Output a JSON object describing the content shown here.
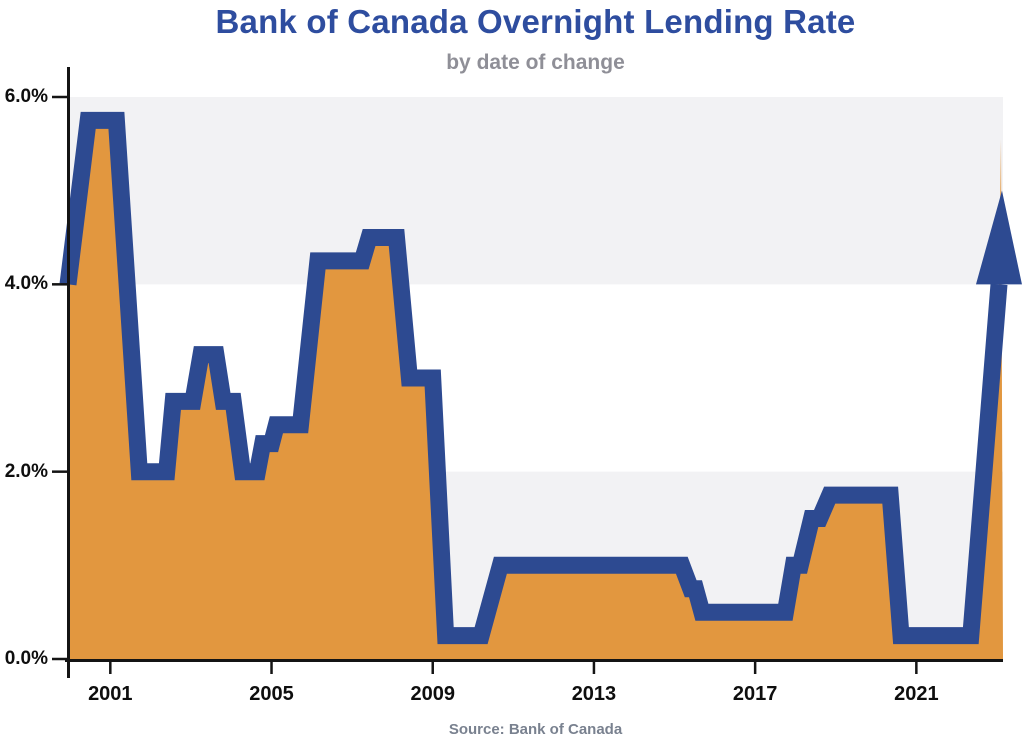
{
  "header": {
    "title": "Bank of Canada Overnight Lending Rate",
    "subtitle": "by date of change"
  },
  "footer": {
    "source": "Source: Bank of Canada"
  },
  "chart_data": {
    "type": "area",
    "title": "Bank of Canada Overnight Lending Rate",
    "subtitle": "by date of change",
    "xlabel": "",
    "ylabel": "",
    "unit": "percent",
    "grid": "off",
    "legend": "none",
    "xlim": [
      1999.95,
      2023.15
    ],
    "ylim": [
      0,
      6
    ],
    "x_ticks": {
      "values": [
        2001,
        2005,
        2009,
        2013,
        2017,
        2021
      ],
      "labels": [
        "2001",
        "2005",
        "2009",
        "2013",
        "2017",
        "2021"
      ]
    },
    "y_ticks": {
      "values": [
        0,
        2,
        4,
        6
      ],
      "labels": [
        "0.0%",
        "2.0%",
        "4.0%",
        "6.0%"
      ]
    },
    "shaded_bands": [
      [
        0,
        2
      ],
      [
        4,
        6
      ]
    ],
    "series": [
      {
        "name": "Overnight lending rate (%) by date of change",
        "points": [
          [
            1999.95,
            4.0
          ],
          [
            2000.45,
            5.75
          ],
          [
            2001.15,
            5.75
          ],
          [
            2001.72,
            2.0
          ],
          [
            2002.4,
            2.0
          ],
          [
            2002.56,
            2.75
          ],
          [
            2003.05,
            2.75
          ],
          [
            2003.25,
            3.25
          ],
          [
            2003.62,
            3.25
          ],
          [
            2003.8,
            2.75
          ],
          [
            2004.05,
            2.75
          ],
          [
            2004.28,
            2.0
          ],
          [
            2004.65,
            2.0
          ],
          [
            2004.78,
            2.3
          ],
          [
            2005.0,
            2.3
          ],
          [
            2005.12,
            2.5
          ],
          [
            2005.72,
            2.5
          ],
          [
            2006.15,
            4.25
          ],
          [
            2007.25,
            4.25
          ],
          [
            2007.42,
            4.5
          ],
          [
            2008.1,
            4.5
          ],
          [
            2008.42,
            3.0
          ],
          [
            2009.0,
            3.0
          ],
          [
            2009.32,
            0.25
          ],
          [
            2010.2,
            0.25
          ],
          [
            2010.68,
            1.0
          ],
          [
            2015.18,
            1.0
          ],
          [
            2015.4,
            0.75
          ],
          [
            2015.52,
            0.75
          ],
          [
            2015.68,
            0.5
          ],
          [
            2017.75,
            0.5
          ],
          [
            2017.95,
            1.0
          ],
          [
            2018.12,
            1.0
          ],
          [
            2018.4,
            1.5
          ],
          [
            2018.6,
            1.5
          ],
          [
            2018.85,
            1.75
          ],
          [
            2020.35,
            1.75
          ],
          [
            2020.62,
            0.25
          ],
          [
            2022.35,
            0.25
          ],
          [
            2023.05,
            4.0
          ]
        ]
      }
    ],
    "area_apex": [
      2023.1,
      5.55
    ],
    "arrow": {
      "direction": "up",
      "tip_value": 5.0
    },
    "colors": {
      "line": "#2d4a91",
      "area_fill": "#e2973f",
      "stripe_band": "#f2f2f4",
      "axis": "#141414",
      "title": "#2e4d9f",
      "subtitle": "#8f8f97",
      "source": "#79818f",
      "tick_label": "#0e0e0e"
    }
  }
}
